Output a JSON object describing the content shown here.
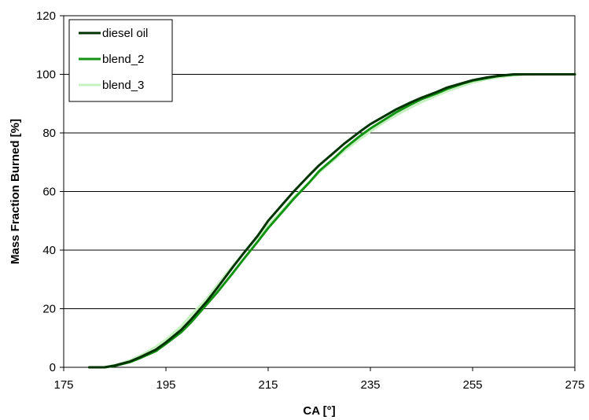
{
  "chart_data": {
    "type": "line",
    "title": "",
    "xlabel": "CA [°]",
    "ylabel": "Mass Fraction Burned [%]",
    "xlim": [
      175,
      275
    ],
    "ylim": [
      0,
      120
    ],
    "xticks": [
      175,
      195,
      215,
      235,
      255,
      275
    ],
    "yticks": [
      0,
      20,
      40,
      60,
      80,
      100,
      120
    ],
    "grid": "horizontal",
    "legend_position": "top-left",
    "series": [
      {
        "name": "diesel oil",
        "color": "#003300",
        "x": [
          180,
          183,
          185,
          188,
          190,
          193,
          195,
          198,
          200,
          203,
          205,
          208,
          210,
          213,
          215,
          218,
          220,
          223,
          225,
          228,
          230,
          233,
          235,
          238,
          240,
          243,
          245,
          248,
          250,
          253,
          255,
          258,
          260,
          263,
          265,
          268,
          270,
          273,
          275
        ],
        "y": [
          0,
          0,
          0.6,
          2,
          3.5,
          6,
          8.5,
          12.8,
          16.5,
          22.5,
          27,
          34,
          38.5,
          45,
          50,
          56,
          60,
          65.5,
          69,
          73.5,
          76.5,
          80.5,
          83,
          86,
          88,
          90.5,
          92,
          94,
          95.5,
          97,
          98,
          99,
          99.5,
          100,
          100,
          100,
          100,
          100,
          100
        ]
      },
      {
        "name": "blend_2",
        "color": "#129412",
        "x": [
          180,
          183,
          185,
          188,
          190,
          193,
          195,
          198,
          200,
          203,
          205,
          208,
          210,
          213,
          215,
          218,
          220,
          223,
          225,
          228,
          230,
          233,
          235,
          238,
          240,
          243,
          245,
          248,
          250,
          253,
          255,
          258,
          260,
          263,
          265,
          268,
          270,
          273,
          275
        ],
        "y": [
          0,
          0,
          0.5,
          1.8,
          3.2,
          5.5,
          8,
          12,
          15.5,
          21.5,
          25.5,
          32,
          36.5,
          43,
          47.5,
          53.5,
          57.5,
          63,
          67,
          71.5,
          74.8,
          79,
          81.5,
          84.8,
          87,
          89.8,
          91.5,
          93.5,
          95,
          96.8,
          97.8,
          98.8,
          99.4,
          99.9,
          100,
          100,
          100,
          100,
          100
        ]
      },
      {
        "name": "blend_3",
        "color": "#c6f0c0",
        "x": [
          180,
          183,
          185,
          188,
          190,
          193,
          195,
          198,
          200,
          203,
          205,
          208,
          210,
          213,
          215,
          218,
          220,
          223,
          225,
          228,
          230,
          233,
          235,
          238,
          240,
          243,
          245,
          248,
          250,
          253,
          255,
          258,
          260,
          263,
          265,
          268,
          270,
          273,
          275
        ],
        "y": [
          0,
          0,
          0.7,
          2.4,
          4,
          7,
          9.5,
          14,
          18,
          23.5,
          28,
          34.5,
          38.5,
          44.5,
          48.5,
          54,
          58,
          63,
          66.5,
          71,
          74,
          78,
          80.5,
          84,
          86,
          88.8,
          90.5,
          92.8,
          94.2,
          96,
          97.2,
          98.4,
          99,
          99.6,
          99.9,
          100,
          100,
          100,
          100
        ]
      }
    ]
  }
}
